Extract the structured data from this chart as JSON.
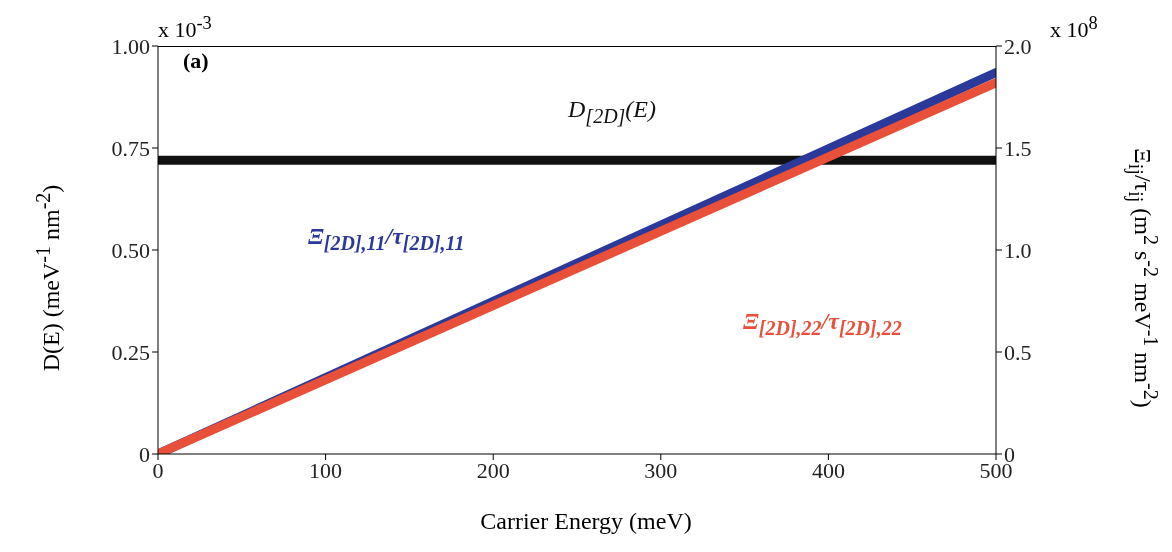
{
  "chart_data": {
    "type": "line",
    "xlabel": "Carrier Energy (meV)",
    "ylabel": "D(E)  (meV$^{-1}$ nm$^{-2}$)",
    "y2label": "Ξ$_{ij}$/τ$_{ij}$  (m$^{2}$ s$^{-2}$ meV$^{-1}$ nm$^{-2}$)",
    "annotations": [
      "(a)",
      "x 10$^{-3}$",
      "x 10$^{8}$"
    ],
    "x": [
      0,
      500
    ],
    "series": [
      {
        "name": "D$_{[2D]}$(E)",
        "color": "#111111",
        "values": [
          0.72,
          0.72
        ]
      },
      {
        "name": "Ξ$_{[2D],11}$/τ$_{[2D],11}$",
        "color": "#2b3a9a",
        "values": [
          0,
          1.87
        ],
        "axis": "y2"
      },
      {
        "name": "Ξ$_{[2D],22}$/τ$_{[2D],22}$",
        "color": "#e8503a",
        "values": [
          0,
          1.82
        ],
        "axis": "y2"
      }
    ],
    "xlim": [
      0,
      500
    ],
    "xticks": [
      0,
      100,
      200,
      300,
      400,
      500
    ],
    "ylim": [
      0,
      1
    ],
    "yticks": [
      0,
      {
        "value": 0.25,
        "label": "0.25"
      },
      {
        "value": 0.5,
        "label": "0.50"
      },
      {
        "value": 0.75,
        "label": "0.75"
      },
      {
        "value": 1,
        "label": "1.00"
      }
    ],
    "y2lim": [
      0,
      2
    ],
    "y2ticks": [
      0,
      {
        "value": 0.5,
        "label": "0.5"
      },
      {
        "value": 1,
        "label": "1.0"
      },
      {
        "value": 1.5,
        "label": "1.5"
      },
      {
        "value": 2,
        "label": "2.0"
      }
    ],
    "grid": false,
    "legend": false,
    "marker": "none",
    "line_style": "solid"
  }
}
